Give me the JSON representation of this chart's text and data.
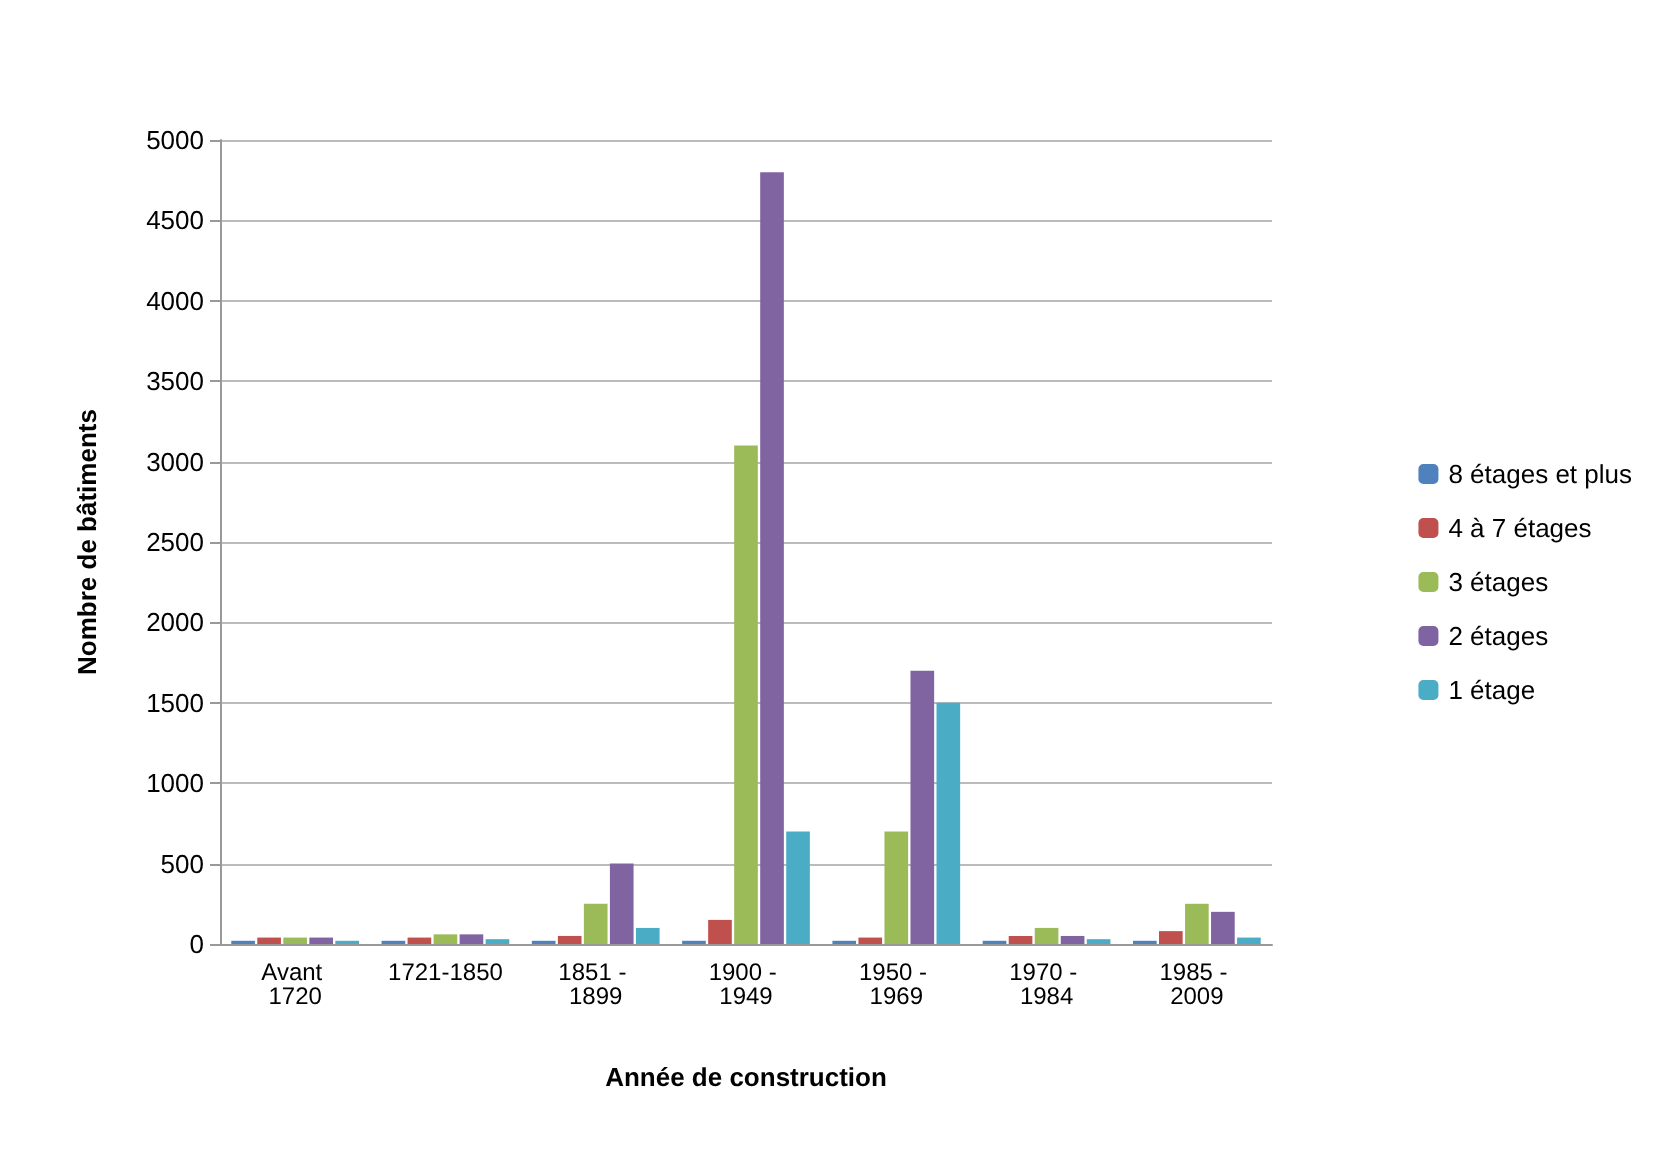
{
  "chart_data": {
    "type": "bar",
    "xlabel": "Année de construction",
    "ylabel": "Nombre de bâtiments",
    "categories": [
      "Avant 1720",
      "1721-1850",
      "1851 - 1899",
      "1900 - 1949",
      "1950 - 1969",
      "1970 - 1984",
      "1985 - 2009"
    ],
    "series": [
      {
        "name": "8 étages et plus",
        "color": "#4f81bd",
        "values": [
          20,
          20,
          20,
          20,
          20,
          20,
          20
        ]
      },
      {
        "name": "4 à 7 étages",
        "color": "#c0504d",
        "values": [
          40,
          40,
          50,
          150,
          40,
          50,
          80
        ]
      },
      {
        "name": "3 étages",
        "color": "#9bbb59",
        "values": [
          40,
          60,
          250,
          3100,
          700,
          100,
          250
        ]
      },
      {
        "name": "2 étages",
        "color": "#8064a2",
        "values": [
          40,
          60,
          500,
          4800,
          1700,
          50,
          200
        ]
      },
      {
        "name": "1 étage",
        "color": "#4bacc6",
        "values": [
          20,
          30,
          100,
          700,
          1500,
          30,
          40
        ]
      }
    ],
    "ylim": [
      0,
      5000
    ],
    "yticks": [
      0,
      500,
      1000,
      1500,
      2000,
      2500,
      3000,
      3500,
      4000,
      4500,
      5000
    ],
    "grid": "y",
    "legend": "right"
  }
}
